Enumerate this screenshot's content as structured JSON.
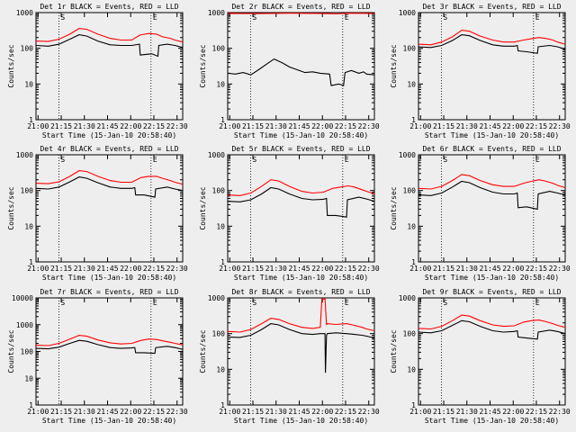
{
  "colors": {
    "background": "#eeeeee",
    "events": "#000000",
    "lld": "#ff0000",
    "axis": "#000000"
  },
  "chart_data": [
    {
      "type": "line",
      "title": "Det 1r BLACK = Events, RED = LLD",
      "xlabel": "Start Time (15-Jan-10 20:58:40)",
      "ylabel": "Counts/sec",
      "x_ticks": [
        "21:00",
        "21:15",
        "21:30",
        "21:45",
        "22:00",
        "22:15",
        "22:30"
      ],
      "y_ticks": [
        "1",
        "10",
        "100",
        "1000"
      ],
      "ylim": [
        1,
        1000
      ],
      "y_scale": "log",
      "xlim_minutes": [
        0,
        95
      ],
      "markers": [
        "S",
        "E"
      ],
      "marker_lines": [
        14.8,
        74.5
      ],
      "series": [
        {
          "color": "#ff0000",
          "x": [
            0,
            8,
            15,
            22,
            28,
            33,
            40,
            48,
            55,
            62,
            67,
            68,
            73,
            78,
            82,
            87,
            90,
            95
          ],
          "y": [
            160,
            155,
            180,
            250,
            360,
            340,
            250,
            190,
            170,
            170,
            230,
            240,
            260,
            250,
            210,
            190,
            170,
            150
          ]
        },
        {
          "color": "#000000",
          "x": [
            0,
            8,
            15,
            22,
            28,
            33,
            40,
            48,
            55,
            62,
            67,
            67.5,
            75,
            79,
            79.5,
            85,
            90,
            95
          ],
          "y": [
            120,
            115,
            130,
            180,
            240,
            220,
            160,
            125,
            120,
            120,
            130,
            65,
            70,
            60,
            120,
            130,
            120,
            105
          ]
        }
      ]
    },
    {
      "type": "line",
      "title": "Det 2r BLACK = Events, RED = LLD",
      "xlabel": "Start Time (15-Jan-10 20:58:40)",
      "ylabel": "Counts/sec",
      "x_ticks": [
        "21:00",
        "21:15",
        "21:30",
        "21:45",
        "22:00",
        "22:15",
        "22:30"
      ],
      "y_ticks": [
        "1",
        "10",
        "100",
        "1000"
      ],
      "ylim": [
        1,
        1000
      ],
      "y_scale": "log",
      "xlim_minutes": [
        0,
        95
      ],
      "markers": [
        "S",
        "E"
      ],
      "marker_lines": [
        14.8,
        74.5
      ],
      "series": [
        {
          "color": "#ff0000",
          "x": [
            0,
            20,
            40,
            60,
            70,
            80,
            95
          ],
          "y": [
            950,
            940,
            960,
            950,
            930,
            960,
            950
          ]
        },
        {
          "color": "#000000",
          "x": [
            0,
            5,
            10,
            15,
            20,
            26,
            30,
            35,
            40,
            45,
            50,
            55,
            60,
            66,
            67,
            72,
            75,
            76,
            80,
            85,
            88,
            90,
            95
          ],
          "y": [
            20,
            19,
            21,
            18,
            25,
            38,
            50,
            40,
            30,
            25,
            21,
            22,
            20,
            19,
            9,
            10,
            9,
            21,
            24,
            20,
            22,
            19,
            18
          ]
        }
      ]
    },
    {
      "type": "line",
      "title": "Det 3r BLACK = Events, RED = LLD",
      "xlabel": "Start Time (15-Jan-10 20:58:40)",
      "ylabel": "Counts/sec",
      "x_ticks": [
        "21:00",
        "21:15",
        "21:30",
        "21:45",
        "22:00",
        "22:15",
        "22:30"
      ],
      "y_ticks": [
        "1",
        "10",
        "100",
        "1000"
      ],
      "ylim": [
        1,
        1000
      ],
      "y_scale": "log",
      "xlim_minutes": [
        0,
        95
      ],
      "markers": [
        "S",
        "E"
      ],
      "marker_lines": [
        14.8,
        74.5
      ],
      "series": [
        {
          "color": "#ff0000",
          "x": [
            0,
            8,
            15,
            22,
            28,
            33,
            40,
            48,
            55,
            62,
            68,
            73,
            78,
            82,
            87,
            90,
            95
          ],
          "y": [
            130,
            125,
            150,
            210,
            320,
            300,
            220,
            170,
            150,
            150,
            170,
            185,
            200,
            190,
            170,
            150,
            130
          ]
        },
        {
          "color": "#000000",
          "x": [
            0,
            8,
            15,
            22,
            28,
            33,
            40,
            48,
            55,
            62,
            64,
            64.5,
            70,
            77,
            77.5,
            85,
            90,
            95
          ],
          "y": [
            110,
            105,
            120,
            165,
            240,
            225,
            165,
            125,
            115,
            115,
            120,
            85,
            80,
            72,
            110,
            120,
            110,
            95
          ]
        }
      ]
    },
    {
      "type": "line",
      "title": "Det 4r BLACK = Events, RED = LLD",
      "xlabel": "Start Time (15-Jan-10 20:58:40)",
      "ylabel": "Counts/sec",
      "x_ticks": [
        "21:00",
        "21:15",
        "21:30",
        "21:45",
        "22:00",
        "22:15",
        "22:30"
      ],
      "y_ticks": [
        "1",
        "10",
        "100",
        "1000"
      ],
      "ylim": [
        1,
        1000
      ],
      "y_scale": "log",
      "xlim_minutes": [
        0,
        95
      ],
      "markers": [
        "S",
        "E"
      ],
      "marker_lines": [
        14.8,
        74.5
      ],
      "series": [
        {
          "color": "#ff0000",
          "x": [
            0,
            8,
            15,
            22,
            28,
            33,
            40,
            48,
            55,
            62,
            68,
            73,
            78,
            82,
            87,
            90,
            95
          ],
          "y": [
            160,
            155,
            175,
            250,
            360,
            340,
            250,
            190,
            170,
            170,
            230,
            250,
            250,
            220,
            190,
            170,
            150
          ]
        },
        {
          "color": "#000000",
          "x": [
            0,
            8,
            15,
            22,
            28,
            33,
            40,
            48,
            55,
            62,
            64,
            64.5,
            70,
            77,
            77.5,
            85,
            90,
            95
          ],
          "y": [
            115,
            110,
            125,
            175,
            240,
            220,
            165,
            125,
            115,
            115,
            120,
            75,
            75,
            65,
            110,
            125,
            110,
            100
          ]
        }
      ]
    },
    {
      "type": "line",
      "title": "Det 5r BLACK = Events, RED = LLD",
      "xlabel": "Start Time (15-Jan-10 20:58:40)",
      "ylabel": "Counts/sec",
      "x_ticks": [
        "21:00",
        "21:15",
        "21:30",
        "21:45",
        "22:00",
        "22:15",
        "22:30"
      ],
      "y_ticks": [
        "1",
        "10",
        "100",
        "1000"
      ],
      "ylim": [
        1,
        1000
      ],
      "y_scale": "log",
      "xlim_minutes": [
        0,
        95
      ],
      "markers": [
        "S",
        "E"
      ],
      "marker_lines": [
        14.8,
        74.5
      ],
      "series": [
        {
          "color": "#ff0000",
          "x": [
            0,
            8,
            15,
            22,
            28,
            33,
            40,
            48,
            55,
            62,
            68,
            73,
            78,
            82,
            87,
            90,
            95
          ],
          "y": [
            75,
            72,
            85,
            130,
            200,
            185,
            130,
            95,
            85,
            90,
            115,
            125,
            135,
            125,
            105,
            95,
            80
          ]
        },
        {
          "color": "#000000",
          "x": [
            0,
            8,
            15,
            22,
            28,
            33,
            40,
            48,
            55,
            62,
            64,
            64.5,
            70,
            77,
            77.5,
            85,
            90,
            95
          ],
          "y": [
            50,
            48,
            55,
            80,
            120,
            110,
            80,
            60,
            55,
            57,
            60,
            20,
            20,
            18,
            55,
            65,
            58,
            50
          ]
        }
      ]
    },
    {
      "type": "line",
      "title": "Det 6r BLACK = Events, RED = LLD",
      "xlabel": "Start Time (15-Jan-10 20:58:40)",
      "ylabel": "Counts/sec",
      "x_ticks": [
        "21:00",
        "21:15",
        "21:30",
        "21:45",
        "22:00",
        "22:15",
        "22:30"
      ],
      "y_ticks": [
        "1",
        "10",
        "100",
        "1000"
      ],
      "ylim": [
        1,
        1000
      ],
      "y_scale": "log",
      "xlim_minutes": [
        0,
        95
      ],
      "markers": [
        "S",
        "E"
      ],
      "marker_lines": [
        14.8,
        74.5
      ],
      "series": [
        {
          "color": "#ff0000",
          "x": [
            0,
            8,
            15,
            22,
            28,
            33,
            40,
            48,
            55,
            62,
            68,
            73,
            78,
            82,
            87,
            90,
            95
          ],
          "y": [
            115,
            110,
            130,
            190,
            280,
            260,
            190,
            145,
            130,
            130,
            160,
            180,
            200,
            185,
            160,
            140,
            120
          ]
        },
        {
          "color": "#000000",
          "x": [
            0,
            8,
            15,
            22,
            28,
            33,
            40,
            48,
            55,
            62,
            64,
            64.5,
            70,
            77,
            77.5,
            85,
            90,
            95
          ],
          "y": [
            75,
            72,
            85,
            125,
            180,
            165,
            120,
            90,
            80,
            80,
            85,
            33,
            35,
            30,
            80,
            95,
            85,
            75
          ]
        }
      ]
    },
    {
      "type": "line",
      "title": "Det 7r BLACK = Events, RED = LLD",
      "xlabel": "Start Time (15-Jan-10 20:58:40)",
      "ylabel": "Counts/sec",
      "x_ticks": [
        "21:00",
        "21:15",
        "21:30",
        "21:45",
        "22:00",
        "22:15",
        "22:30"
      ],
      "y_ticks": [
        "1",
        "10",
        "100",
        "1000",
        "10000"
      ],
      "ylim": [
        1,
        10000
      ],
      "y_scale": "log",
      "xlim_minutes": [
        0,
        95
      ],
      "markers": [
        "S",
        "E"
      ],
      "marker_lines": [
        14.8,
        74.5
      ],
      "series": [
        {
          "color": "#ff0000",
          "x": [
            0,
            8,
            15,
            22,
            28,
            33,
            40,
            48,
            55,
            62,
            68,
            73,
            78,
            82,
            87,
            90,
            95
          ],
          "y": [
            170,
            165,
            200,
            290,
            400,
            370,
            270,
            210,
            190,
            200,
            260,
            290,
            280,
            250,
            220,
            200,
            175
          ]
        },
        {
          "color": "#000000",
          "x": [
            0,
            8,
            15,
            22,
            28,
            33,
            40,
            48,
            55,
            62,
            64,
            64.5,
            70,
            77,
            77.5,
            85,
            90,
            95
          ],
          "y": [
            130,
            125,
            145,
            200,
            260,
            240,
            180,
            140,
            130,
            135,
            140,
            90,
            90,
            85,
            140,
            155,
            140,
            120
          ]
        }
      ]
    },
    {
      "type": "line",
      "title": "Det 8r BLACK = Events, RED = LLD",
      "xlabel": "Start Time (15-Jan-10 20:58:40)",
      "ylabel": "Counts/sec",
      "x_ticks": [
        "21:00",
        "21:15",
        "21:30",
        "21:45",
        "22:00",
        "22:15",
        "22:30"
      ],
      "y_ticks": [
        "1",
        "10",
        "100",
        "1000"
      ],
      "ylim": [
        1,
        1000
      ],
      "y_scale": "log",
      "xlim_minutes": [
        0,
        95
      ],
      "markers": [
        "S",
        "E"
      ],
      "marker_lines": [
        14.8,
        74.5
      ],
      "series": [
        {
          "color": "#ff0000",
          "x": [
            0,
            8,
            15,
            22,
            28,
            33,
            40,
            48,
            55,
            60,
            61,
            62,
            63,
            64,
            64.5,
            70,
            77,
            82,
            87,
            90,
            95
          ],
          "y": [
            115,
            110,
            130,
            190,
            270,
            250,
            190,
            150,
            140,
            150,
            950,
            900,
            950,
            180,
            190,
            180,
            190,
            170,
            150,
            135,
            120
          ]
        },
        {
          "color": "#000000",
          "x": [
            0,
            8,
            15,
            22,
            28,
            33,
            40,
            48,
            55,
            60,
            63,
            63.3,
            64,
            64.5,
            70,
            77,
            82,
            87,
            90,
            95
          ],
          "y": [
            80,
            78,
            90,
            130,
            190,
            175,
            130,
            100,
            95,
            100,
            100,
            8,
            90,
            100,
            105,
            100,
            95,
            90,
            85,
            75
          ]
        }
      ]
    },
    {
      "type": "line",
      "title": "Det 9r BLACK = Events, RED = LLD",
      "xlabel": "Start Time (15-Jan-10 20:58:40)",
      "ylabel": "Counts/sec",
      "x_ticks": [
        "21:00",
        "21:15",
        "21:30",
        "21:45",
        "22:00",
        "22:15",
        "22:30"
      ],
      "y_ticks": [
        "1",
        "10",
        "100",
        "1000"
      ],
      "ylim": [
        1,
        1000
      ],
      "y_scale": "log",
      "xlim_minutes": [
        0,
        95
      ],
      "markers": [
        "S",
        "E"
      ],
      "marker_lines": [
        14.8,
        74.5
      ],
      "series": [
        {
          "color": "#ff0000",
          "x": [
            0,
            8,
            15,
            22,
            28,
            33,
            40,
            48,
            55,
            62,
            68,
            73,
            78,
            82,
            87,
            90,
            95
          ],
          "y": [
            140,
            135,
            160,
            230,
            330,
            310,
            230,
            175,
            160,
            165,
            210,
            230,
            240,
            220,
            190,
            170,
            150
          ]
        },
        {
          "color": "#000000",
          "x": [
            0,
            8,
            15,
            22,
            28,
            33,
            40,
            48,
            55,
            62,
            64,
            64.5,
            70,
            77,
            77.5,
            85,
            90,
            95
          ],
          "y": [
            110,
            105,
            120,
            170,
            230,
            215,
            160,
            120,
            110,
            115,
            120,
            80,
            75,
            70,
            110,
            125,
            115,
            100
          ]
        }
      ]
    }
  ]
}
